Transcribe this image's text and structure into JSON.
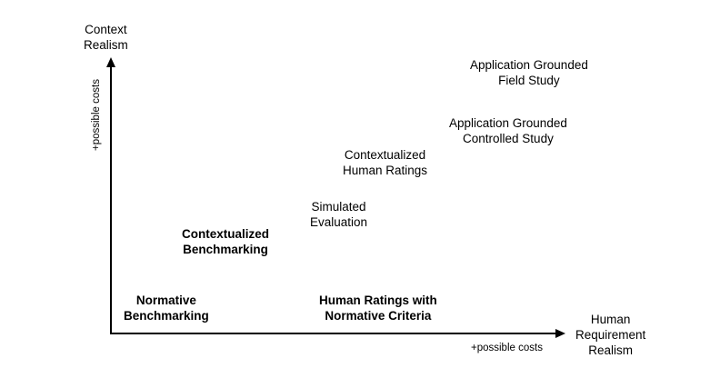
{
  "axes": {
    "y_title": [
      "Context",
      "Realism"
    ],
    "x_title": [
      "Human",
      "Requirement",
      "Realism"
    ],
    "y_note": "+possible costs",
    "x_note": "+possible costs"
  },
  "nodes": [
    {
      "id": "normative-benchmarking",
      "lines": [
        "Normative",
        "Benchmarking"
      ],
      "bold": true
    },
    {
      "id": "contextualized-benchmarking",
      "lines": [
        "Contextualized",
        "Benchmarking"
      ],
      "bold": true
    },
    {
      "id": "human-ratings-normative",
      "lines": [
        "Human Ratings with",
        "Normative Criteria"
      ],
      "bold": true
    },
    {
      "id": "simulated-evaluation",
      "lines": [
        "Simulated",
        "Evaluation"
      ],
      "bold": false
    },
    {
      "id": "contextualized-human-ratings",
      "lines": [
        "Contextualized",
        "Human Ratings"
      ],
      "bold": false
    },
    {
      "id": "application-grounded-controlled",
      "lines": [
        "Application Grounded",
        "Controlled Study"
      ],
      "bold": false
    },
    {
      "id": "application-grounded-field",
      "lines": [
        "Application Grounded",
        "Field Study"
      ],
      "bold": false
    }
  ]
}
